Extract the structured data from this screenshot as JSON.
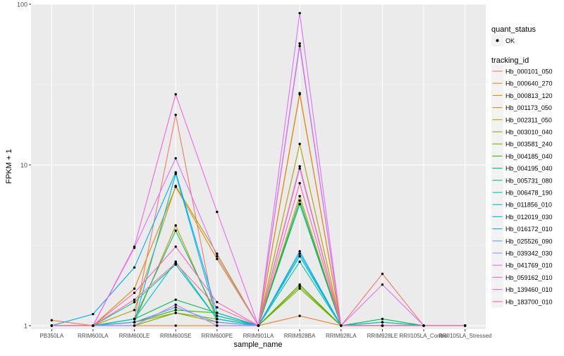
{
  "chart_data": {
    "type": "line",
    "xlabel": "sample_name",
    "ylabel": "FPKM + 1",
    "y_scale": "log10",
    "ylim": [
      0.95,
      100
    ],
    "y_ticks": [
      1,
      10,
      100
    ],
    "y_tick_labels": [
      "1",
      "10",
      "100"
    ],
    "grid": true,
    "legend_position": "right",
    "categories": [
      "PB350LA",
      "RRIM600LA",
      "RRIM600LE",
      "RRIM600SE",
      "RRIM600PE",
      "RRIM901LA",
      "RRIM928BA",
      "RRIM928LA",
      "RRIM928LE",
      "RRII105LA_Control",
      "RRII105LA_Stressed"
    ],
    "quant_status_legend": {
      "title": "quant_status",
      "items": [
        "OK"
      ]
    },
    "tracking_legend_title": "tracking_id",
    "series": [
      {
        "name": "Hb_000101_050",
        "color": "#F8766D",
        "values": [
          1,
          1,
          1.1,
          20.5,
          1.0,
          1,
          27.5,
          1,
          2.1,
          1,
          1
        ]
      },
      {
        "name": "Hb_000640_270",
        "color": "#EC8239",
        "values": [
          1.08,
          1,
          1.0,
          1.0,
          1.0,
          1,
          1.15,
          1,
          1.0,
          1,
          1
        ]
      },
      {
        "name": "Hb_000813_120",
        "color": "#DB8E00",
        "values": [
          1,
          1,
          1.7,
          7.3,
          2.6,
          1,
          28.0,
          1,
          1.0,
          1,
          1
        ]
      },
      {
        "name": "Hb_001173_050",
        "color": "#C79800",
        "values": [
          1,
          1,
          1.05,
          4.2,
          1.1,
          1,
          6.4,
          1,
          1.0,
          1,
          1
        ]
      },
      {
        "name": "Hb_002311_050",
        "color": "#AFA100",
        "values": [
          1,
          1,
          1.25,
          7.4,
          2.8,
          1,
          13.5,
          1,
          1.0,
          1,
          1
        ]
      },
      {
        "name": "Hb_003010_040",
        "color": "#93AA00",
        "values": [
          1,
          1,
          1.05,
          1.2,
          1.05,
          1,
          1.75,
          1,
          1.0,
          1,
          1
        ]
      },
      {
        "name": "Hb_003581_240",
        "color": "#72B000",
        "values": [
          1,
          1,
          1.0,
          1.2,
          1.1,
          1,
          1.7,
          1,
          1.0,
          1,
          1
        ]
      },
      {
        "name": "Hb_004185_040",
        "color": "#39B600",
        "values": [
          1,
          1,
          1.05,
          1.25,
          1.2,
          1,
          1.8,
          1,
          1.0,
          1,
          1
        ]
      },
      {
        "name": "Hb_004195_040",
        "color": "#00BB4E",
        "values": [
          1,
          1,
          1.1,
          1.45,
          1.2,
          1,
          6.0,
          1,
          1.1,
          1,
          1
        ]
      },
      {
        "name": "Hb_005731_080",
        "color": "#00BF7D",
        "values": [
          1,
          1,
          1.1,
          3.9,
          1.15,
          1,
          5.7,
          1,
          1.05,
          1,
          1
        ]
      },
      {
        "name": "Hb_006478_190",
        "color": "#00C1A3",
        "values": [
          1,
          1,
          1.4,
          2.4,
          1.1,
          1,
          2.5,
          1,
          1.0,
          1,
          1
        ]
      },
      {
        "name": "Hb_011856_010",
        "color": "#00BFC4",
        "values": [
          1,
          1,
          1.1,
          2.5,
          1.1,
          1,
          2.7,
          1,
          1.05,
          1,
          1
        ]
      },
      {
        "name": "Hb_012019_030",
        "color": "#00B8E5",
        "values": [
          1,
          1,
          1.05,
          8.8,
          1.1,
          1,
          2.8,
          1,
          1.0,
          1,
          1
        ]
      },
      {
        "name": "Hb_016172_010",
        "color": "#00ABFD",
        "values": [
          1,
          1.18,
          2.3,
          9.0,
          1.2,
          1,
          2.9,
          1,
          1.0,
          1,
          1
        ]
      },
      {
        "name": "Hb_025526_090",
        "color": "#619CFF",
        "values": [
          1,
          1,
          1.05,
          1.3,
          1.05,
          1,
          55.0,
          1,
          1.0,
          1,
          1
        ]
      },
      {
        "name": "Hb_039342_030",
        "color": "#A58AFF",
        "values": [
          1,
          1,
          1.0,
          1.35,
          1.0,
          1,
          9.5,
          1,
          1.0,
          1,
          1
        ]
      },
      {
        "name": "Hb_041769_010",
        "color": "#DB72FB",
        "values": [
          1,
          1,
          3.05,
          11.0,
          2.7,
          1,
          88.0,
          1,
          1.8,
          1,
          1
        ]
      },
      {
        "name": "Hb_059162_010",
        "color": "#F564E3",
        "values": [
          1,
          1,
          3.1,
          27.5,
          5.1,
          1,
          57.0,
          1,
          1.0,
          1,
          1
        ]
      },
      {
        "name": "Hb_139460_010",
        "color": "#FF61C3",
        "values": [
          1,
          1,
          1.6,
          3.1,
          1.4,
          1,
          7.7,
          1,
          1.0,
          1,
          1
        ]
      },
      {
        "name": "Hb_183700_010",
        "color": "#FF6C91",
        "values": [
          1,
          1,
          1.45,
          2.45,
          1.3,
          1,
          9.8,
          1,
          1.0,
          1,
          1
        ]
      }
    ]
  }
}
